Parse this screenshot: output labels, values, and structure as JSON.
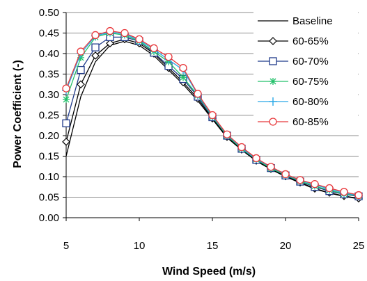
{
  "chart_data": {
    "type": "line",
    "xlabel": "Wind Speed (m/s)",
    "ylabel": "Power Coefficient (-)",
    "xlim": [
      5,
      25
    ],
    "ylim": [
      0,
      0.5
    ],
    "x_ticks": [
      "5",
      "10",
      "15",
      "20",
      "25"
    ],
    "y_ticks": [
      "0.00",
      "0.05",
      "0.10",
      "0.15",
      "0.20",
      "0.25",
      "0.30",
      "0.35",
      "0.40",
      "0.45",
      "0.50"
    ],
    "grid": "horizontal",
    "legend_position": "right",
    "x": [
      5,
      6,
      7,
      8,
      9,
      10,
      11,
      12,
      13,
      14,
      15,
      16,
      17,
      18,
      19,
      20,
      21,
      22,
      23,
      24,
      25
    ],
    "series": [
      {
        "name": "Baseline",
        "color": "#000000",
        "marker": "none",
        "values": [
          0.15,
          0.295,
          0.38,
          0.42,
          0.43,
          0.42,
          0.395,
          0.36,
          0.325,
          0.285,
          0.24,
          0.195,
          0.165,
          0.138,
          0.118,
          0.1,
          0.085,
          0.07,
          0.06,
          0.052,
          0.046
        ]
      },
      {
        "name": "60-65%",
        "color": "#000000",
        "marker": "diamond",
        "values": [
          0.185,
          0.325,
          0.395,
          0.425,
          0.435,
          0.425,
          0.4,
          0.365,
          0.33,
          0.29,
          0.242,
          0.197,
          0.166,
          0.139,
          0.119,
          0.101,
          0.086,
          0.071,
          0.061,
          0.053,
          0.047
        ]
      },
      {
        "name": "60-70%",
        "color": "#1f3a8a",
        "marker": "square",
        "values": [
          0.23,
          0.36,
          0.415,
          0.44,
          0.44,
          0.43,
          0.402,
          0.37,
          0.338,
          0.295,
          0.245,
          0.2,
          0.168,
          0.141,
          0.121,
          0.103,
          0.088,
          0.075,
          0.065,
          0.057,
          0.052
        ]
      },
      {
        "name": "60-75%",
        "color": "#22c06a",
        "marker": "asterisk",
        "values": [
          0.288,
          0.39,
          0.44,
          0.45,
          0.445,
          0.43,
          0.405,
          0.38,
          0.342,
          0.298,
          0.246,
          0.2,
          0.168,
          0.142,
          0.12,
          0.104,
          0.089,
          0.077,
          0.067,
          0.058,
          0.053
        ]
      },
      {
        "name": "60-80%",
        "color": "#29a8e6",
        "marker": "plus",
        "values": [
          0.31,
          0.4,
          0.443,
          0.452,
          0.448,
          0.432,
          0.41,
          0.385,
          0.36,
          0.3,
          0.248,
          0.202,
          0.17,
          0.143,
          0.123,
          0.105,
          0.091,
          0.08,
          0.07,
          0.06,
          0.054
        ]
      },
      {
        "name": "60-85%",
        "color": "#e8393c",
        "marker": "circle",
        "values": [
          0.315,
          0.405,
          0.445,
          0.455,
          0.45,
          0.435,
          0.413,
          0.392,
          0.365,
          0.302,
          0.25,
          0.203,
          0.172,
          0.145,
          0.124,
          0.106,
          0.092,
          0.082,
          0.072,
          0.063,
          0.055
        ]
      }
    ]
  }
}
